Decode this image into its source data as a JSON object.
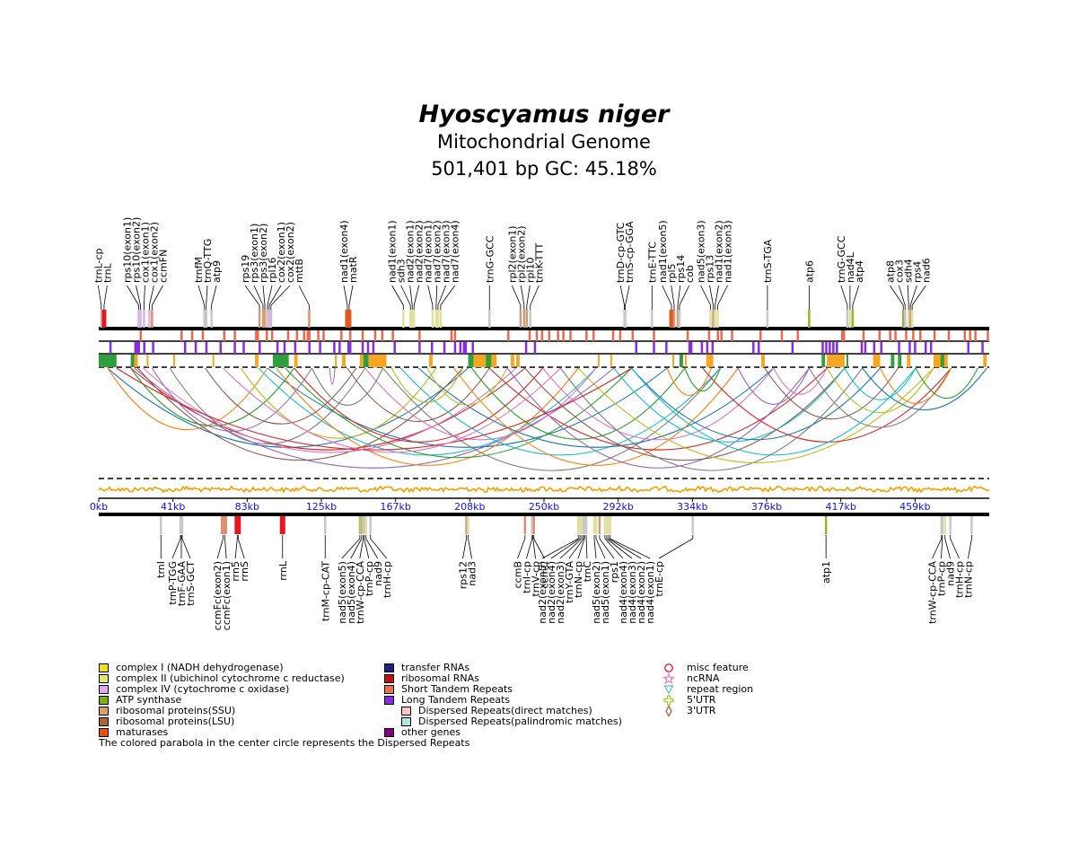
{
  "title": {
    "species": "Hyoscyamus niger",
    "subtitle": "Mitochondrial Genome",
    "stats": "501,401 bp  GC: 45.18%"
  },
  "axis": {
    "ticks": [
      "0kb",
      "41kb",
      "83kb",
      "125kb",
      "167kb",
      "208kb",
      "250kb",
      "292kb",
      "334kb",
      "376kb",
      "417kb",
      "459kb"
    ]
  },
  "genome_length": 501401,
  "top_genes": [
    {
      "name": "trnL-cp",
      "pos": 1400,
      "color": "#c8c8c8"
    },
    {
      "name": "trnL",
      "pos": 3000,
      "color": "#e8141e"
    },
    {
      "name": "rps10(exon1)",
      "pos": 22500,
      "color": "#d8b4e8"
    },
    {
      "name": "rps10(exon2)",
      "pos": 23500,
      "color": "#d8b4e8"
    },
    {
      "name": "cox1(exon1)",
      "pos": 25500,
      "color": "#d8b4e8"
    },
    {
      "name": "cox1(exon2)",
      "pos": 28500,
      "color": "#d8b4e8"
    },
    {
      "name": "ccmFN",
      "pos": 30000,
      "color": "#e09070"
    },
    {
      "name": "trnfM",
      "pos": 59500,
      "color": "#c8c8c8"
    },
    {
      "name": "trnQ-TTG",
      "pos": 60500,
      "color": "#c8c8c8"
    },
    {
      "name": "atp9",
      "pos": 63500,
      "color": "#c8c8c8"
    },
    {
      "name": "rps19",
      "pos": 90500,
      "color": "#c8a080"
    },
    {
      "name": "rps3(exon1)",
      "pos": 92500,
      "color": "#d8a070"
    },
    {
      "name": "rps3(exon2)",
      "pos": 93500,
      "color": "#d8a070"
    },
    {
      "name": "rpl16",
      "pos": 95000,
      "color": "#c8c8c8"
    },
    {
      "name": "cox2(exon1)",
      "pos": 96000,
      "color": "#d8b4e8"
    },
    {
      "name": "cox2(exon2)",
      "pos": 97000,
      "color": "#d8b4e8"
    },
    {
      "name": "mttB",
      "pos": 118500,
      "color": "#e09070"
    },
    {
      "name": "nad1(exon4)",
      "pos": 140000,
      "color": "#e05a1e"
    },
    {
      "name": "matR",
      "pos": 141000,
      "color": "#e05a1e"
    },
    {
      "name": "nad1(exon1)",
      "pos": 171500,
      "color": "#e0e0a0"
    },
    {
      "name": "sdh3",
      "pos": 175500,
      "color": "#e0e0a0"
    },
    {
      "name": "nad2(exon1)",
      "pos": 176500,
      "color": "#e0e0a0"
    },
    {
      "name": "nad2(exon2)",
      "pos": 177500,
      "color": "#e0e0a0"
    },
    {
      "name": "nad7(exon1)",
      "pos": 188000,
      "color": "#e0e0a0"
    },
    {
      "name": "nad7(exon2)",
      "pos": 190000,
      "color": "#e0e0a0"
    },
    {
      "name": "nad7(exon3)",
      "pos": 191000,
      "color": "#e0e0a0"
    },
    {
      "name": "nad7(exon4)",
      "pos": 192500,
      "color": "#e0e0a0"
    },
    {
      "name": "trnG-GCC",
      "pos": 220000,
      "color": "#c8c8c8"
    },
    {
      "name": "rpl2(exon1)",
      "pos": 237500,
      "color": "#c8a080"
    },
    {
      "name": "rpl2(exon2)",
      "pos": 239500,
      "color": "#c8a080"
    },
    {
      "name": "rpl10",
      "pos": 241000,
      "color": "#c8a080"
    },
    {
      "name": "trnK-TTT",
      "pos": 243000,
      "color": "#c8c8c8"
    },
    {
      "name": "trnD-cp-GTC",
      "pos": 296000,
      "color": "#c8c8c8"
    },
    {
      "name": "trnS-cp-GGA",
      "pos": 296500,
      "color": "#c8c8c8"
    },
    {
      "name": "trnE-TTC",
      "pos": 311500,
      "color": "#c8c8c8"
    },
    {
      "name": "nad1(exon5)",
      "pos": 322500,
      "color": "#e05a1e"
    },
    {
      "name": "rpl5",
      "pos": 324000,
      "color": "#c8a080"
    },
    {
      "name": "rps14",
      "pos": 326000,
      "color": "#c8a080"
    },
    {
      "name": "cob",
      "pos": 327000,
      "color": "#c8c8c8"
    },
    {
      "name": "nad5(exon3)",
      "pos": 344500,
      "color": "#e0e0a0"
    },
    {
      "name": "rps13",
      "pos": 346000,
      "color": "#c8a080"
    },
    {
      "name": "nad1(exon2)",
      "pos": 347000,
      "color": "#e0e0a0"
    },
    {
      "name": "nad1(exon3)",
      "pos": 348500,
      "color": "#e0e0a0"
    },
    {
      "name": "trnS-TGA",
      "pos": 376500,
      "color": "#c8c8c8"
    },
    {
      "name": "atp6",
      "pos": 400000,
      "color": "#90b820"
    },
    {
      "name": "trnG-GCC",
      "pos": 421500,
      "color": "#c8c8c8"
    },
    {
      "name": "nad4L",
      "pos": 423000,
      "color": "#e0e0a0"
    },
    {
      "name": "atp4",
      "pos": 424500,
      "color": "#90b820"
    },
    {
      "name": "atp8",
      "pos": 453000,
      "color": "#90b820"
    },
    {
      "name": "cox3",
      "pos": 454000,
      "color": "#d8b4e8"
    },
    {
      "name": "sdh4",
      "pos": 456000,
      "color": "#e0e0a0"
    },
    {
      "name": "rps4",
      "pos": 457000,
      "color": "#c8a080"
    },
    {
      "name": "nad6",
      "pos": 458000,
      "color": "#e0e0a0"
    }
  ],
  "bottom_genes": [
    {
      "name": "trnI",
      "pos": 35000,
      "color": "#c8c8c8"
    },
    {
      "name": "trnP-TGG",
      "pos": 46000,
      "color": "#c8c8c8"
    },
    {
      "name": "trnF-GAA",
      "pos": 46500,
      "color": "#c8c8c8"
    },
    {
      "name": "trnS-GCT",
      "pos": 47000,
      "color": "#c8c8c8"
    },
    {
      "name": "ccmFc(exon2)",
      "pos": 70000,
      "color": "#e09070"
    },
    {
      "name": "ccmFc(exon1)",
      "pos": 71000,
      "color": "#e09070"
    },
    {
      "name": "rrn5",
      "pos": 78000,
      "color": "#e8141e"
    },
    {
      "name": "rrnS",
      "pos": 78500,
      "color": "#e8141e"
    },
    {
      "name": "rrnL",
      "pos": 103500,
      "color": "#e8141e"
    },
    {
      "name": "trnM-cp-CAT",
      "pos": 127500,
      "color": "#c8c8c8"
    },
    {
      "name": "nad5(exon5)",
      "pos": 147000,
      "color": "#c0c070"
    },
    {
      "name": "nad5(exon4)",
      "pos": 148000,
      "color": "#c0c070"
    },
    {
      "name": "trnW-cp-CCA",
      "pos": 149000,
      "color": "#c8c8c8"
    },
    {
      "name": "trnP-cp",
      "pos": 149500,
      "color": "#c8c8c8"
    },
    {
      "name": "nad9",
      "pos": 150500,
      "color": "#e0e0a0"
    },
    {
      "name": "trnH-cp",
      "pos": 153000,
      "color": "#c8c8c8"
    },
    {
      "name": "rps12",
      "pos": 207000,
      "color": "#c8a080"
    },
    {
      "name": "nad3",
      "pos": 208000,
      "color": "#e0e0a0"
    },
    {
      "name": "ccmB",
      "pos": 240000,
      "color": "#e09070"
    },
    {
      "name": "trnI-cp",
      "pos": 244000,
      "color": "#c8c8c8"
    },
    {
      "name": "trnV-cp",
      "pos": 244500,
      "color": "#c8c8c8"
    },
    {
      "name": "ccmC",
      "pos": 245000,
      "color": "#e09070"
    },
    {
      "name": "nad2(exon5)",
      "pos": 270000,
      "color": "#e0e0a0"
    },
    {
      "name": "nad2(exon4)",
      "pos": 271000,
      "color": "#e0e0a0"
    },
    {
      "name": "nad2(exon3)",
      "pos": 272000,
      "color": "#e0e0a0"
    },
    {
      "name": "trnY-GTA",
      "pos": 273000,
      "color": "#c8c8c8"
    },
    {
      "name": "trnN-cp",
      "pos": 273500,
      "color": "#c8c8c8"
    },
    {
      "name": "trnC",
      "pos": 274500,
      "color": "#c8c8c8"
    },
    {
      "name": "nad5(exon2)",
      "pos": 279000,
      "color": "#e0e0a0"
    },
    {
      "name": "nad5(exon1)",
      "pos": 280000,
      "color": "#e0e0a0"
    },
    {
      "name": "rps1",
      "pos": 282000,
      "color": "#c8a080"
    },
    {
      "name": "nad4(exon4)",
      "pos": 285000,
      "color": "#e0e0a0"
    },
    {
      "name": "nad4(exon3)",
      "pos": 286000,
      "color": "#e0e0a0"
    },
    {
      "name": "nad4(exon2)",
      "pos": 287000,
      "color": "#e0e0a0"
    },
    {
      "name": "nad4(exon1)",
      "pos": 288000,
      "color": "#e0e0a0"
    },
    {
      "name": "trnE-cp",
      "pos": 334500,
      "color": "#c8c8c8"
    },
    {
      "name": "atp1",
      "pos": 409500,
      "color": "#90b820"
    },
    {
      "name": "trnW-cp-CCA",
      "pos": 474500,
      "color": "#c8c8c8"
    },
    {
      "name": "trnP-cp",
      "pos": 475000,
      "color": "#c8c8c8"
    },
    {
      "name": "nad9",
      "pos": 476500,
      "color": "#e0e0a0"
    },
    {
      "name": "trnH-cp",
      "pos": 479500,
      "color": "#c8c8c8"
    },
    {
      "name": "trnN-cp",
      "pos": 491500,
      "color": "#c8c8c8"
    }
  ],
  "repeat_colors": {
    "short_tandem": "#e96a50",
    "long_tandem": "#8a2be2",
    "dispersed_direct": "#f5a623",
    "dispersed_palindromic": "#2e9e3e",
    "gc_line": "#f5a000"
  },
  "arc_colors": [
    "#1f77b4",
    "#ff7f0e",
    "#2ca02c",
    "#d62728",
    "#9467bd",
    "#8c564b",
    "#e377c2",
    "#7f7f7f",
    "#bcbd22",
    "#17becf"
  ],
  "legend": {
    "col1": [
      {
        "label": "complex I (NADH dehydrogenase)",
        "color": "#f0e020"
      },
      {
        "label": "complex II (ubichinol cytochrome c reductase)",
        "color": "#e0e870"
      },
      {
        "label": "complex IV (cytochrome c oxidase)",
        "color": "#e0a8f0"
      },
      {
        "label": "ATP synthase",
        "color": "#80b010"
      },
      {
        "label": "ribosomal proteins(SSU)",
        "color": "#d8a060"
      },
      {
        "label": "ribosomal proteins(LSU)",
        "color": "#a86830"
      },
      {
        "label": "maturases",
        "color": "#e85010"
      }
    ],
    "col2": [
      {
        "label": "transfer RNAs",
        "color": "#202080"
      },
      {
        "label": "ribosomal RNAs",
        "color": "#c01010"
      },
      {
        "label": "Short Tandem Repeats",
        "color": "#e97050"
      },
      {
        "label": "Long Tandem Repeats",
        "color": "#8a2be2"
      },
      {
        "label": "other genes",
        "color": "#800080"
      }
    ],
    "col2b": [
      {
        "label": "Dispersed Repeats(direct matches)",
        "color": "#f8c8c0"
      },
      {
        "label": "Dispersed Repeats(palindromic matches)",
        "color": "#b0e8e0"
      }
    ],
    "col3": [
      {
        "label": "misc feature",
        "icon": "circle-icon",
        "color": "#e8204a"
      },
      {
        "label": "ncRNA",
        "icon": "star-icon",
        "color": "#f080c0"
      },
      {
        "label": "repeat region",
        "icon": "triangle-icon",
        "color": "#50c0d0"
      },
      {
        "label": "5'UTR",
        "icon": "cross-icon",
        "color": "#a0c820"
      },
      {
        "label": "3'UTR",
        "icon": "diamond-icon",
        "color": "#b05030"
      }
    ]
  },
  "footnote": "The colored parabola in the center circle represents the Dispersed Repeats"
}
